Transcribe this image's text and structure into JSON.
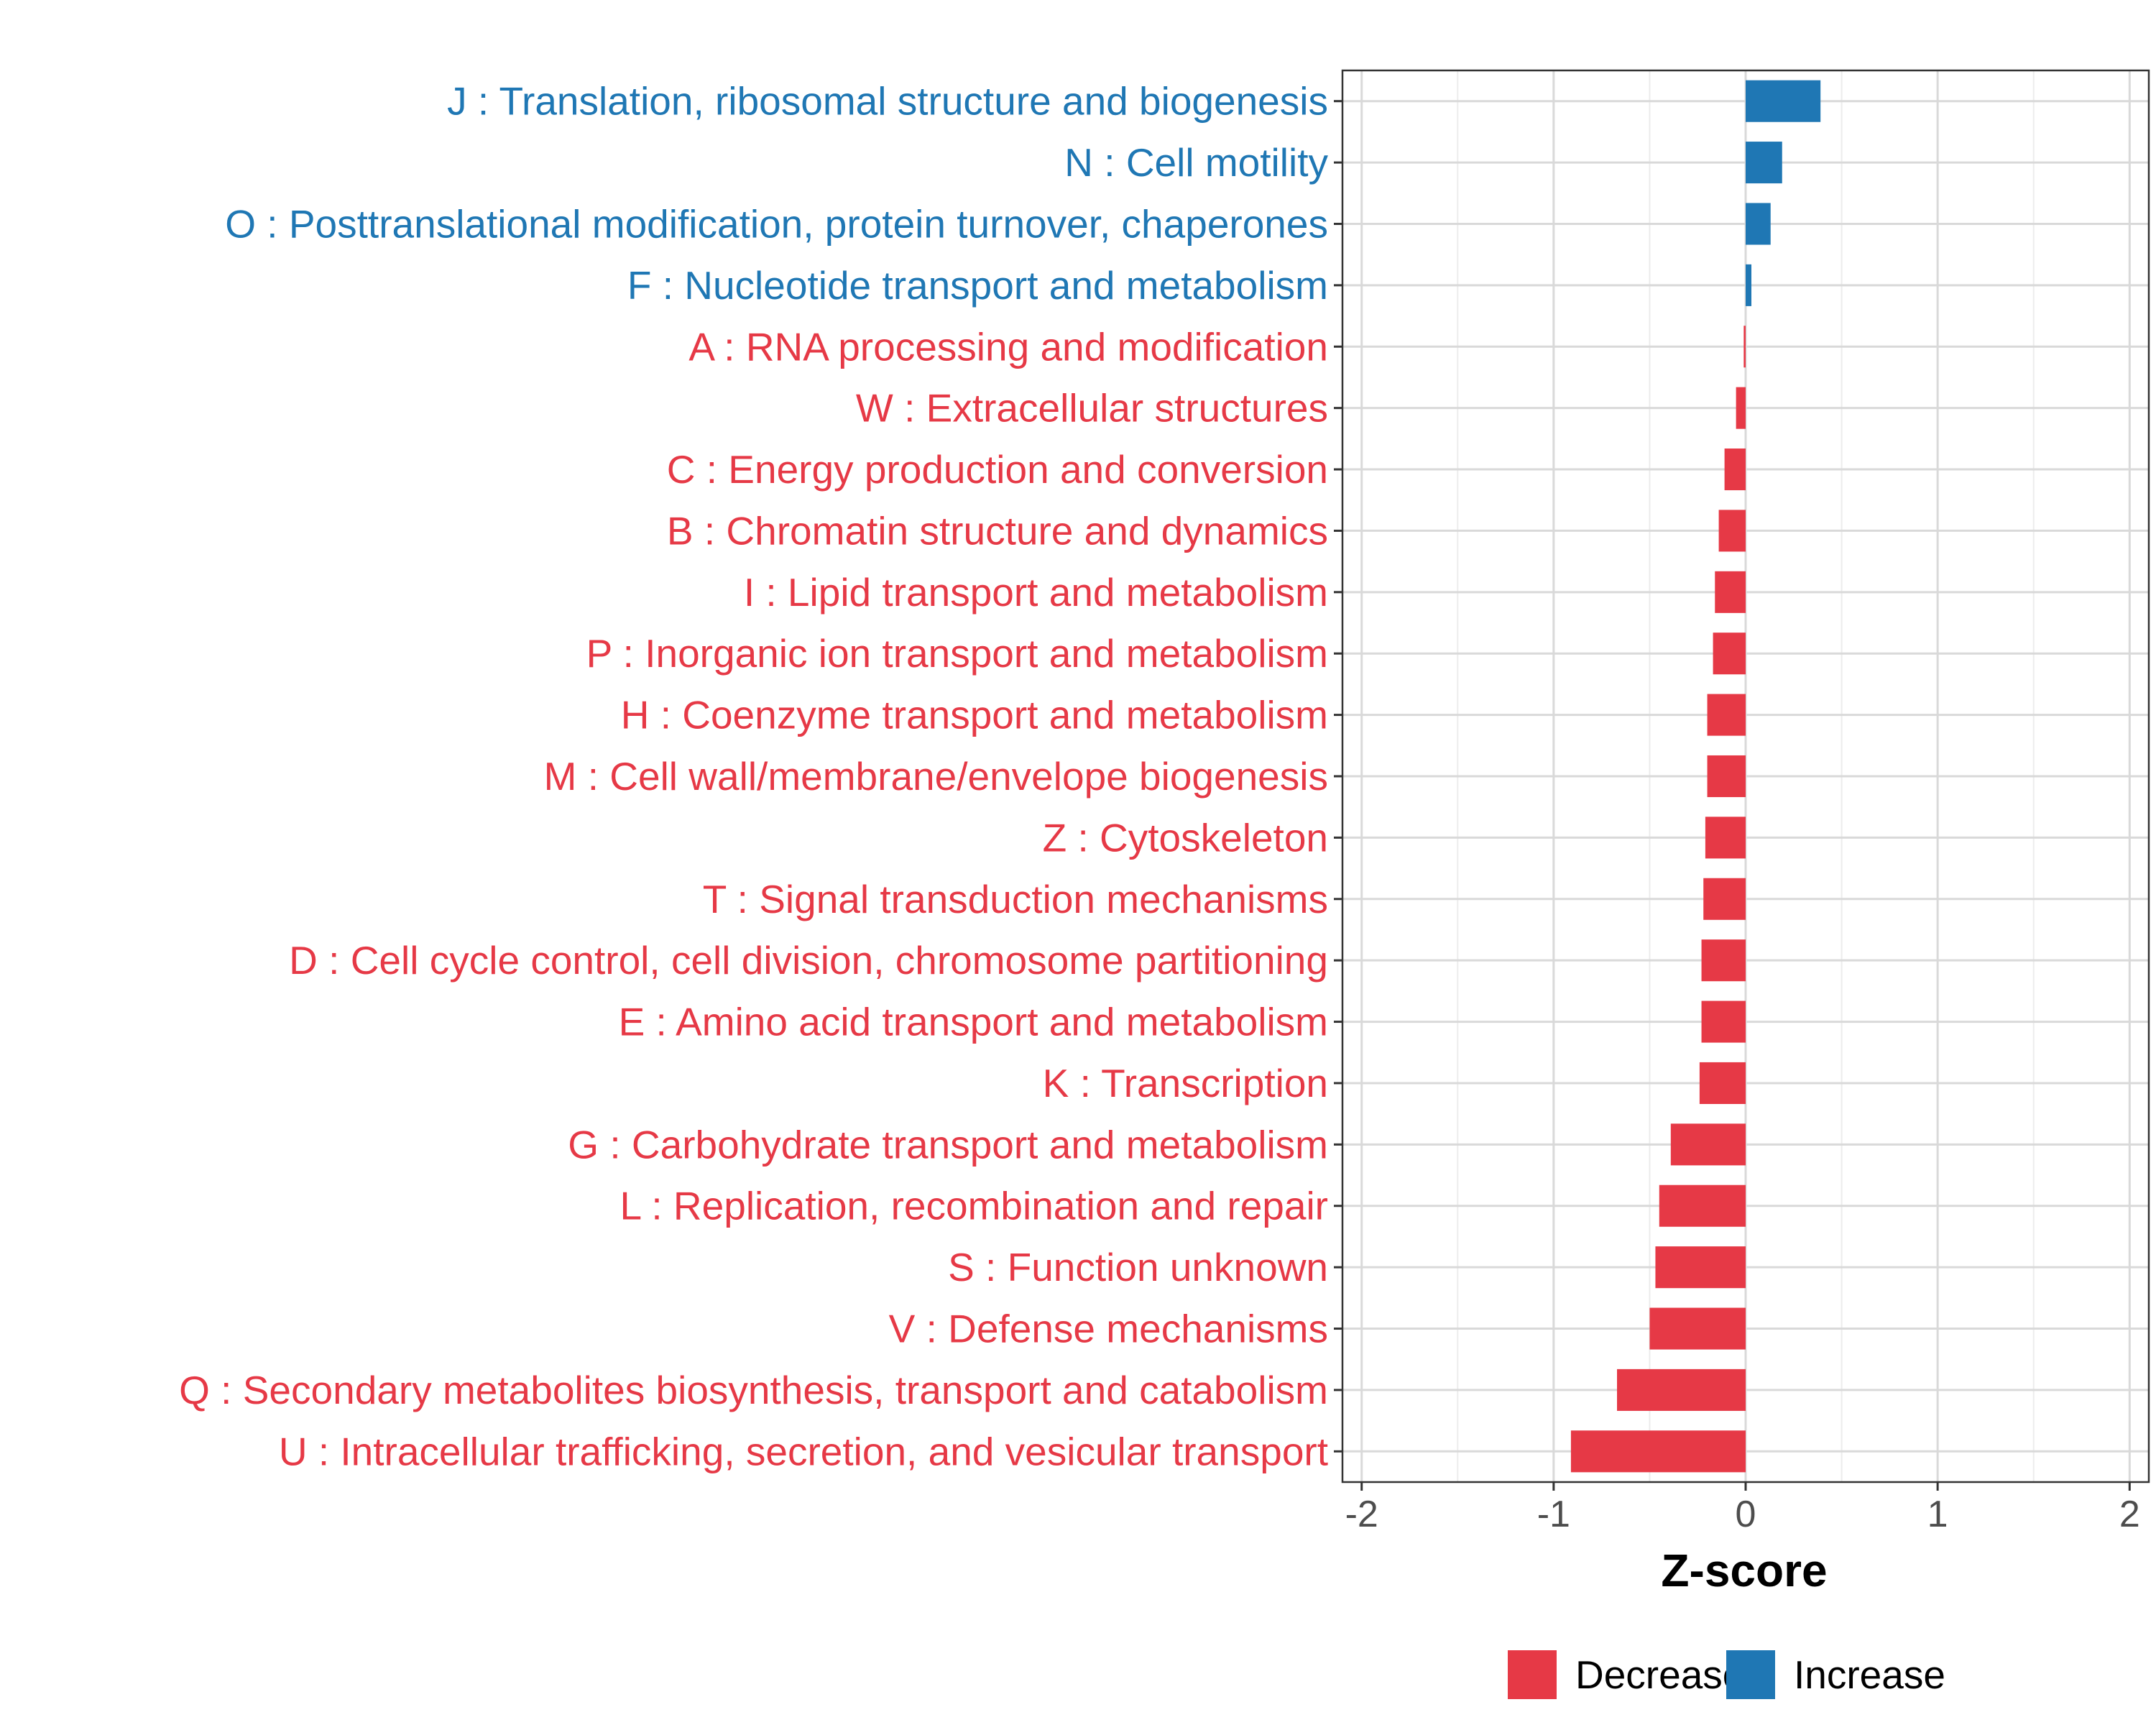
{
  "chart_data": {
    "type": "bar",
    "orientation": "horizontal",
    "title": "",
    "xlabel": "Z-score",
    "ylabel": "",
    "xlim": [
      -2.1,
      2.1
    ],
    "xticks": [
      -2,
      -1,
      0,
      1,
      2
    ],
    "xtick_labels": [
      "-2",
      "-1",
      "0",
      "1",
      "2"
    ],
    "grid": true,
    "legend_position": "bottom",
    "colors": {
      "Decrease": "#e63946",
      "Increase": "#1f77b4"
    },
    "legend": [
      {
        "name": "Decrease",
        "color": "#e63946"
      },
      {
        "name": "Increase",
        "color": "#1f77b4"
      }
    ],
    "categories": [
      "J : Translation, ribosomal structure and biogenesis",
      "N : Cell motility",
      "O : Posttranslational modification, protein turnover, chaperones",
      "F : Nucleotide transport and metabolism",
      "A : RNA processing and modification",
      "W : Extracellular structures",
      "C : Energy production and conversion",
      "B : Chromatin structure and dynamics",
      "I : Lipid transport and metabolism",
      "P : Inorganic ion transport and metabolism",
      "H : Coenzyme transport and metabolism",
      "M : Cell wall/membrane/envelope biogenesis",
      "Z : Cytoskeleton",
      "T : Signal transduction mechanisms",
      "D : Cell cycle control, cell division, chromosome partitioning",
      "E : Amino acid transport and metabolism",
      "K : Transcription",
      "G : Carbohydrate transport and metabolism",
      "L : Replication, recombination and repair",
      "S : Function unknown",
      "V : Defense mechanisms",
      "Q : Secondary metabolites biosynthesis, transport and catabolism",
      "U : Intracellular trafficking, secretion, and vesicular transport"
    ],
    "values": [
      0.39,
      0.19,
      0.13,
      0.03,
      -0.01,
      -0.05,
      -0.11,
      -0.14,
      -0.16,
      -0.17,
      -0.2,
      -0.2,
      -0.21,
      -0.22,
      -0.23,
      -0.23,
      -0.24,
      -0.39,
      -0.45,
      -0.47,
      -0.5,
      -0.67,
      -0.91
    ],
    "groups": [
      "Increase",
      "Increase",
      "Increase",
      "Increase",
      "Decrease",
      "Decrease",
      "Decrease",
      "Decrease",
      "Decrease",
      "Decrease",
      "Decrease",
      "Decrease",
      "Decrease",
      "Decrease",
      "Decrease",
      "Decrease",
      "Decrease",
      "Decrease",
      "Decrease",
      "Decrease",
      "Decrease",
      "Decrease",
      "Decrease"
    ]
  }
}
